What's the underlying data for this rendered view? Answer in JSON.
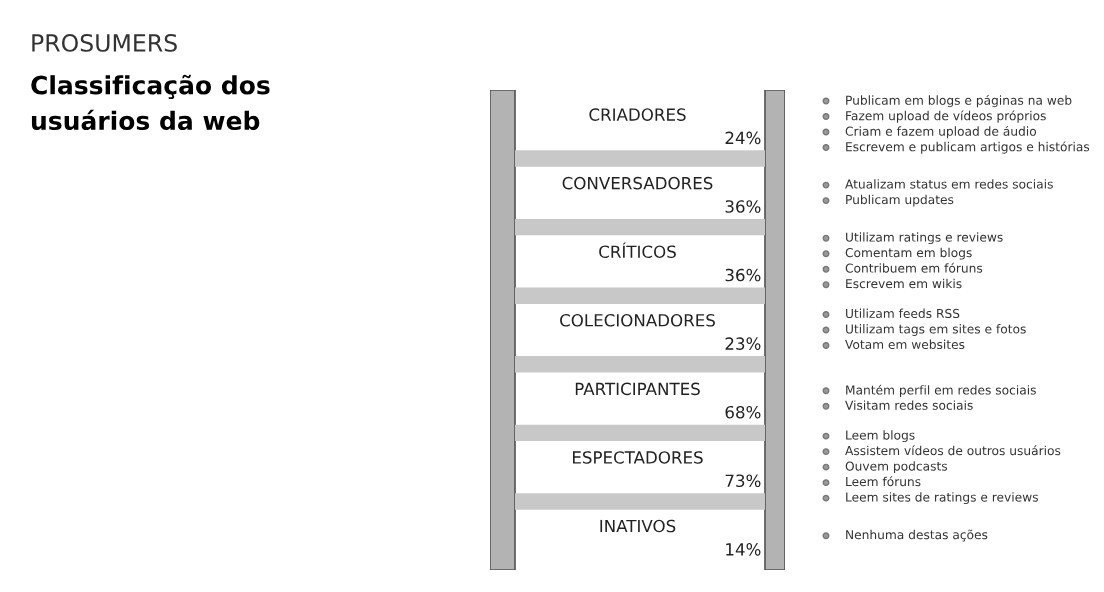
{
  "chart_data": {
    "type": "other",
    "title": "PROSUMERS",
    "subtitle": "Classificação dos\nusuários da web",
    "categories": [
      "CRIADORES",
      "CONVERSADORES",
      "CRÍTICOS",
      "COLECIONADORES",
      "PARTICIPANTES",
      "ESPECTADORES",
      "INATIVOS"
    ],
    "values": [
      24,
      36,
      36,
      23,
      68,
      73,
      14
    ],
    "value_labels": [
      "24%",
      "36%",
      "36%",
      "23%",
      "68%",
      "73%",
      "14%"
    ],
    "annotations": [
      "Publicam em blogs e páginas na web\nFazem upload de vídeos próprios\nCriam e fazem upload de áudio\nEscrevem e publicam artigos e histórias",
      "Atualizam status em redes sociais\nPublicam updates",
      "Utilizam ratings e reviews\nComentam em blogs\nContribuem em fóruns\nEscrevem em wikis",
      "Utilizam feeds RSS\nUtilizam tags em sites e fotos\nVotam em websites",
      "Mantém perfil em redes sociais\nVisitam redes sociais",
      "Leem blogs\nAssistem vídeos de outros usuários\nOuvem podcasts\nLeem fóruns\nLeem sites de ratings e reviews",
      "Nenhuma destas ações"
    ]
  }
}
